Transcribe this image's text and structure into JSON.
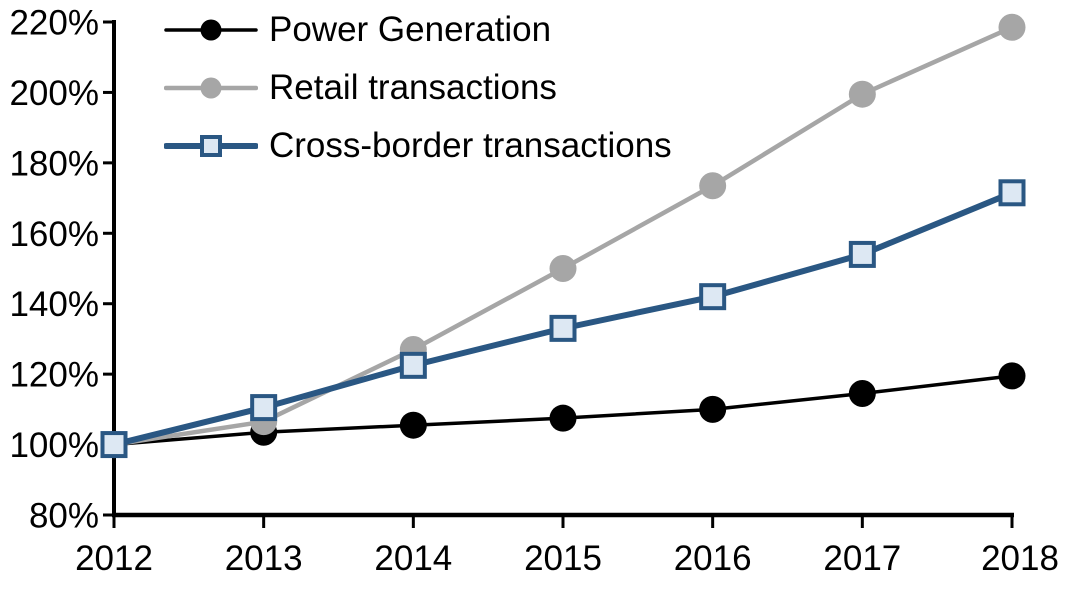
{
  "chart_data": {
    "type": "line",
    "title": "",
    "xlabel": "",
    "ylabel": "",
    "background": "#ffffff",
    "axis_color": "#000000",
    "grid": false,
    "legend_position": "top-left",
    "x": [
      2012,
      2013,
      2014,
      2015,
      2016,
      2017,
      2018
    ],
    "x_tick_labels": [
      "2012",
      "2013",
      "2014",
      "2015",
      "2016",
      "2017",
      "2018"
    ],
    "y_axis": {
      "min": 80,
      "max": 220,
      "tick_step": 20,
      "ticks": [
        220,
        200,
        180,
        160,
        140,
        120,
        100,
        80
      ],
      "tick_labels": [
        "220%",
        "200%",
        "180%",
        "160%",
        "140%",
        "120%",
        "100%",
        "80%"
      ],
      "unit": "%"
    },
    "series": [
      {
        "name": "Power Generation",
        "color": "#000000",
        "marker": "circle",
        "marker_fill": "#000000",
        "line_width": 3.5,
        "values": [
          100,
          103.5,
          105.5,
          107.5,
          110,
          114.5,
          119.5
        ]
      },
      {
        "name": "Retail transactions",
        "color": "#a6a6a6",
        "marker": "circle",
        "marker_fill": "#a6a6a6",
        "line_width": 4.5,
        "values": [
          100,
          106.5,
          127,
          150,
          173.5,
          199.5,
          218.5
        ]
      },
      {
        "name": "Cross-border transactions",
        "color": "#2a5783",
        "marker": "square",
        "marker_fill": "#dde8f3",
        "line_width": 6,
        "values": [
          100,
          110.5,
          122.5,
          133,
          142,
          154,
          171.5
        ]
      }
    ]
  }
}
